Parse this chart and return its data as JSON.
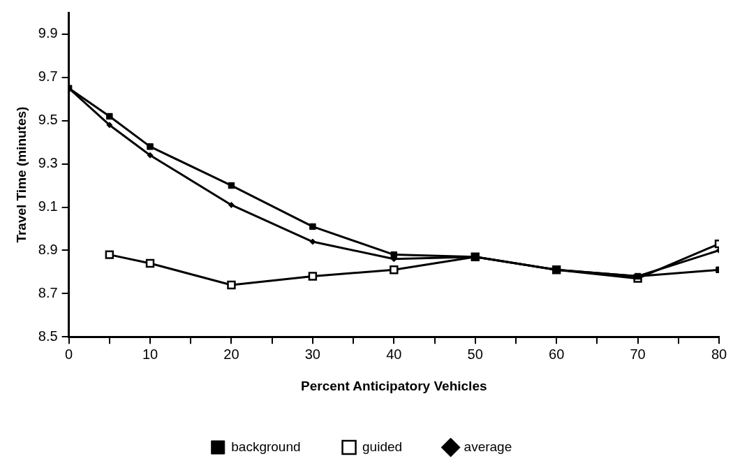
{
  "chart_data": {
    "type": "line",
    "xlabel": "Percent Anticipatory Vehicles",
    "ylabel": "Travel Time (minutes)",
    "xlim": [
      0,
      80
    ],
    "xticks": [
      0,
      {
        "value": 5,
        "label": null
      },
      10,
      {
        "value": 15,
        "label": null
      },
      20,
      {
        "value": 25,
        "label": null
      },
      30,
      {
        "value": 35,
        "label": null
      },
      40,
      {
        "value": 45,
        "label": null
      },
      50,
      {
        "value": 55,
        "label": null
      },
      60,
      {
        "value": 65,
        "label": null
      },
      70,
      {
        "value": 75,
        "label": null
      },
      80
    ],
    "ylim": [
      8.5,
      10
    ],
    "yticks": [
      8.5,
      8.7,
      8.9,
      9.1,
      9.3,
      9.5,
      9.7,
      9.9
    ],
    "grid": false,
    "legend": "bottom",
    "line_style": "solid",
    "series": [
      {
        "name": "background",
        "color": "#000000",
        "marker": "square",
        "x": [
          0,
          5,
          10,
          20,
          30,
          40,
          50,
          60,
          70,
          80
        ],
        "values": [
          9.65,
          9.52,
          9.38,
          9.2,
          9.01,
          8.88,
          8.87,
          8.81,
          8.78,
          8.81
        ]
      },
      {
        "name": "guided",
        "color": "#000000",
        "marker": "square",
        "x": [
          5,
          10,
          20,
          30,
          40,
          50,
          60,
          70,
          80
        ],
        "values": [
          8.88,
          8.84,
          8.74,
          8.78,
          8.81,
          8.87,
          8.81,
          8.77,
          8.93
        ]
      },
      {
        "name": "average",
        "color": "#000000",
        "marker": "diamond",
        "x": [
          0,
          5,
          10,
          20,
          30,
          40,
          50,
          60,
          70,
          80
        ],
        "values": [
          9.65,
          9.48,
          9.34,
          9.11,
          8.94,
          8.86,
          8.87,
          8.81,
          8.78,
          8.9
        ]
      }
    ]
  }
}
